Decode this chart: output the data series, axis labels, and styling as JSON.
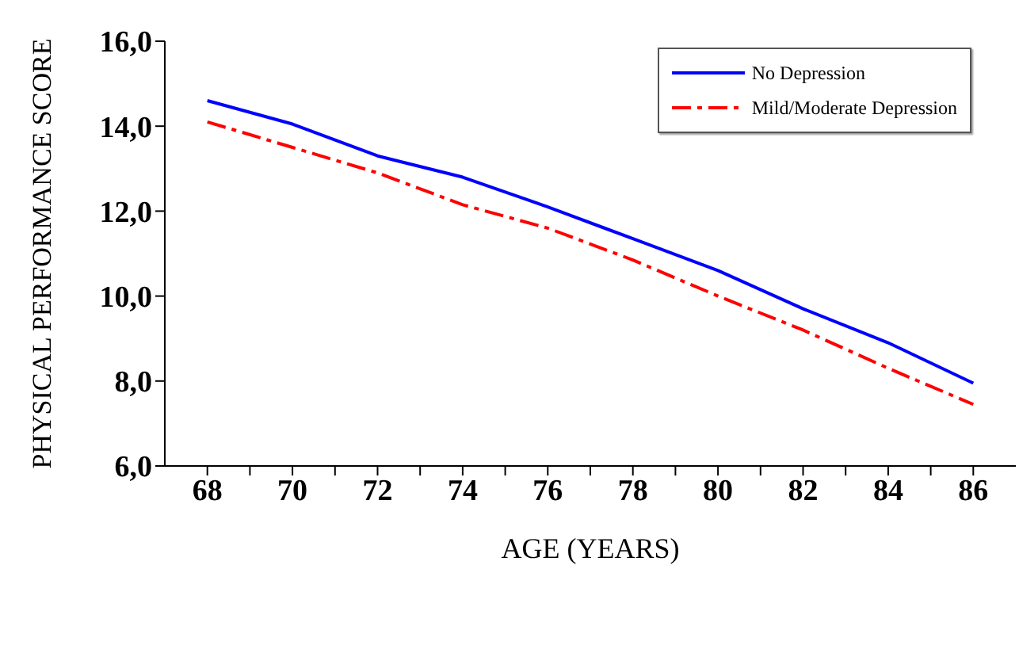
{
  "chart_data": {
    "type": "line",
    "xlabel": "AGE (YEARS)",
    "ylabel": "PHYSICAL PERFORMANCE SCORE",
    "x": [
      68,
      70,
      72,
      74,
      76,
      78,
      80,
      82,
      84,
      86
    ],
    "series": [
      {
        "name": "No Depression",
        "color": "#0000ff",
        "line_style": "solid",
        "values": [
          14.6,
          14.05,
          13.3,
          12.8,
          12.1,
          11.35,
          10.6,
          9.7,
          8.9,
          7.95
        ]
      },
      {
        "name": "Mild/Moderate Depression",
        "color": "#ff0000",
        "line_style": "dashed",
        "values": [
          14.1,
          13.5,
          12.9,
          12.15,
          11.6,
          10.85,
          10.0,
          9.2,
          8.3,
          7.45
        ]
      }
    ],
    "xlim": [
      67,
      87
    ],
    "xticks": [
      {
        "value": 68,
        "label": "68"
      },
      {
        "value": 69,
        "label": null
      },
      {
        "value": 70,
        "label": "70"
      },
      {
        "value": 71,
        "label": null
      },
      {
        "value": 72,
        "label": "72"
      },
      {
        "value": 73,
        "label": null
      },
      {
        "value": 74,
        "label": "74"
      },
      {
        "value": 75,
        "label": null
      },
      {
        "value": 76,
        "label": "76"
      },
      {
        "value": 77,
        "label": null
      },
      {
        "value": 78,
        "label": "78"
      },
      {
        "value": 79,
        "label": null
      },
      {
        "value": 80,
        "label": "80"
      },
      {
        "value": 81,
        "label": null
      },
      {
        "value": 82,
        "label": "82"
      },
      {
        "value": 83,
        "label": null
      },
      {
        "value": 84,
        "label": "84"
      },
      {
        "value": 85,
        "label": null
      },
      {
        "value": 86,
        "label": "86"
      }
    ],
    "ylim": [
      6,
      16
    ],
    "yticks": [
      {
        "value": 6,
        "label": "6,0"
      },
      {
        "value": 8,
        "label": "8,0"
      },
      {
        "value": 10,
        "label": "10,0"
      },
      {
        "value": 12,
        "label": "12,0"
      },
      {
        "value": 14,
        "label": "14,0"
      },
      {
        "value": 16,
        "label": "16,0"
      }
    ],
    "grid": false,
    "legend": "top right",
    "marker": "none"
  }
}
